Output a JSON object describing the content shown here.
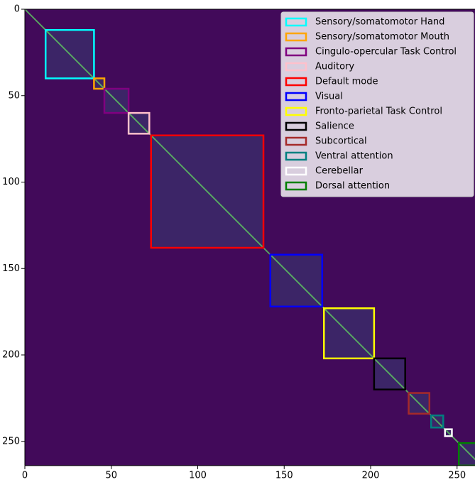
{
  "chart_data": {
    "type": "heatmap",
    "xlim": [
      0,
      264
    ],
    "ylim": [
      0,
      264
    ],
    "xticks": [
      0,
      50,
      100,
      150,
      200,
      250
    ],
    "yticks": [
      0,
      50,
      100,
      150,
      200,
      250
    ],
    "background_color": "#440154",
    "legend": "upper right",
    "networks": [
      {
        "name": "Sensory/somatomotor Hand",
        "color": "#00ffff",
        "range": [
          12,
          40
        ]
      },
      {
        "name": "Sensory/somatomotor Mouth",
        "color": "#ffa500",
        "range": [
          40,
          46
        ]
      },
      {
        "name": "Cingulo-opercular Task Control",
        "color": "#800080",
        "range": [
          46,
          60
        ]
      },
      {
        "name": "Auditory",
        "color": "#ffc0cb",
        "range": [
          60,
          72
        ]
      },
      {
        "name": "Default mode",
        "color": "#ff0000",
        "range": [
          73,
          138
        ]
      },
      {
        "name": "Visual",
        "color": "#0000ff",
        "range": [
          142,
          172
        ]
      },
      {
        "name": "Fronto-parietal Task Control",
        "color": "#ffff00",
        "range": [
          173,
          202
        ]
      },
      {
        "name": "Salience",
        "color": "#000000",
        "range": [
          202,
          220
        ]
      },
      {
        "name": "Subcortical",
        "color": "#a52a2a",
        "range": [
          222,
          234
        ]
      },
      {
        "name": "Ventral attention",
        "color": "#008080",
        "range": [
          235,
          242
        ]
      },
      {
        "name": "Cerebellar",
        "color": "#ffffff",
        "range": [
          243,
          247
        ]
      },
      {
        "name": "Dorsal attention",
        "color": "#008000",
        "range": [
          251,
          264
        ]
      }
    ]
  }
}
